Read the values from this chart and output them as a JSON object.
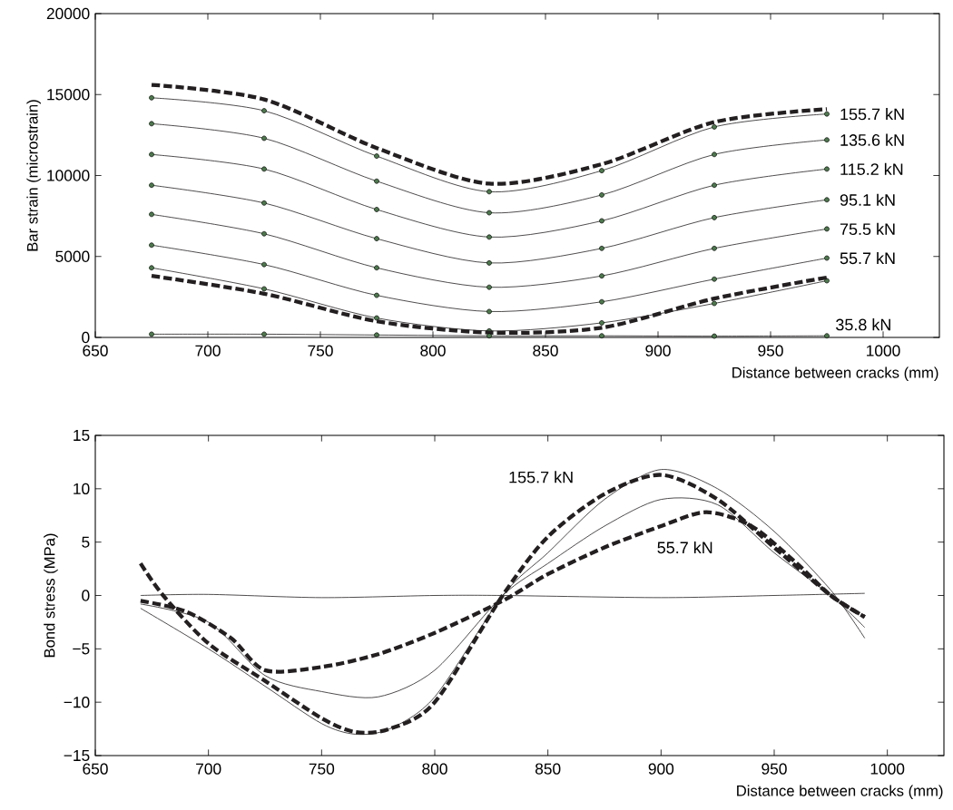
{
  "chart_data": [
    {
      "type": "line",
      "xlabel": "Distance between cracks (mm)",
      "ylabel": "Bar strain (microstrain)",
      "xlim": [
        650,
        1025
      ],
      "ylim": [
        0,
        20000
      ],
      "xticks": [
        650,
        700,
        750,
        800,
        850,
        900,
        950,
        1000
      ],
      "yticks": [
        0,
        5000,
        10000,
        15000,
        20000
      ],
      "x": [
        675,
        725,
        775,
        825,
        875,
        925,
        975
      ],
      "series": [
        {
          "color": "#231f20",
          "line_style": "dashed",
          "marker": "none",
          "values": [
            15600,
            14700,
            11700,
            9500,
            10700,
            13300,
            14100
          ]
        },
        {
          "color": "#231f20",
          "line_style": "solid",
          "marker": "circle",
          "values": [
            14800,
            14000,
            11200,
            9000,
            10300,
            13000,
            13800
          ]
        },
        {
          "color": "#231f20",
          "line_style": "solid",
          "marker": "circle",
          "values": [
            13200,
            12300,
            9650,
            7700,
            8800,
            11300,
            12200
          ]
        },
        {
          "color": "#231f20",
          "line_style": "solid",
          "marker": "circle",
          "values": [
            11300,
            10400,
            7900,
            6200,
            7200,
            9400,
            10400
          ]
        },
        {
          "color": "#231f20",
          "line_style": "solid",
          "marker": "circle",
          "values": [
            9400,
            8300,
            6100,
            4600,
            5500,
            7400,
            8500
          ]
        },
        {
          "color": "#231f20",
          "line_style": "solid",
          "marker": "circle",
          "values": [
            7600,
            6400,
            4300,
            3100,
            3800,
            5500,
            6700
          ]
        },
        {
          "color": "#231f20",
          "line_style": "solid",
          "marker": "circle",
          "values": [
            5700,
            4500,
            2600,
            1600,
            2200,
            3600,
            4900
          ]
        },
        {
          "color": "#231f20",
          "line_style": "solid",
          "marker": "circle",
          "values": [
            4300,
            3000,
            1200,
            400,
            900,
            2100,
            3500
          ]
        },
        {
          "color": "#231f20",
          "line_style": "dashed",
          "marker": "none",
          "values": [
            3800,
            2700,
            1000,
            300,
            600,
            2400,
            3700
          ]
        },
        {
          "color": "#231f20",
          "line_style": "solid",
          "marker": "circle",
          "values": [
            200,
            200,
            150,
            100,
            100,
            80,
            100
          ]
        }
      ],
      "annotations": [
        "155.7 kN",
        "135.6 kN",
        "115.2 kN",
        "95.1 kN",
        "75.5 kN",
        "55.7 kN",
        "35.8 kN"
      ]
    },
    {
      "type": "line",
      "xlabel": "Distance between cracks (mm)",
      "ylabel": "Bond stress (MPa)",
      "xlim": [
        650,
        1025
      ],
      "ylim": [
        -15,
        15
      ],
      "xticks": [
        650,
        700,
        750,
        800,
        850,
        900,
        950,
        1000
      ],
      "yticks": [
        {
          "value": -15,
          "label": "−15"
        },
        {
          "value": -10,
          "label": "−10"
        },
        {
          "value": -5,
          "label": "−5"
        },
        0,
        5,
        10,
        15
      ],
      "series": [
        {
          "color": "#231f20",
          "line_style": "dashed",
          "marker": "none",
          "x": [
            670,
            680,
            700,
            725,
            750,
            765,
            780,
            800,
            830,
            850,
            875,
            900,
            925,
            950,
            975,
            990
          ],
          "values": [
            3,
            0,
            -4.5,
            -8,
            -11.5,
            -12.8,
            -12.5,
            -10,
            0,
            5.5,
            9.5,
            11.3,
            9,
            4.5,
            0,
            -2
          ]
        },
        {
          "color": "#231f20",
          "line_style": "solid",
          "marker": "none",
          "x": [
            670,
            700,
            725,
            750,
            765,
            780,
            800,
            830,
            850,
            875,
            900,
            925,
            950,
            975,
            990
          ],
          "values": [
            -1.2,
            -5,
            -8.5,
            -12,
            -13,
            -12.5,
            -9.5,
            0,
            4,
            9,
            11.8,
            10,
            6,
            0.5,
            -4
          ]
        },
        {
          "color": "#231f20",
          "line_style": "solid",
          "marker": "none",
          "x": [
            670,
            700,
            725,
            750,
            775,
            800,
            830,
            850,
            875,
            900,
            925,
            950,
            975,
            990
          ],
          "values": [
            -0.8,
            -2.5,
            -7.5,
            -9,
            -9.5,
            -7,
            0,
            3,
            6.5,
            9,
            8.5,
            4,
            0,
            -3
          ]
        },
        {
          "color": "#231f20",
          "line_style": "dashed",
          "marker": "none",
          "x": [
            670,
            690,
            710,
            725,
            750,
            775,
            800,
            830,
            850,
            875,
            900,
            920,
            940,
            960,
            975,
            990
          ],
          "values": [
            -0.5,
            -1.5,
            -4,
            -7,
            -6.7,
            -5.5,
            -3.5,
            -0.5,
            2,
            4.5,
            6.5,
            7.8,
            6.5,
            3,
            0,
            -2
          ]
        },
        {
          "color": "#231f20",
          "line_style": "solid",
          "marker": "none",
          "x": [
            670,
            700,
            750,
            800,
            830,
            900,
            950,
            990
          ],
          "values": [
            0,
            0.1,
            -0.2,
            0,
            0,
            -0.2,
            0,
            0.2
          ]
        }
      ],
      "annotations": [
        "155.7 kN",
        "55.7 kN"
      ]
    }
  ]
}
